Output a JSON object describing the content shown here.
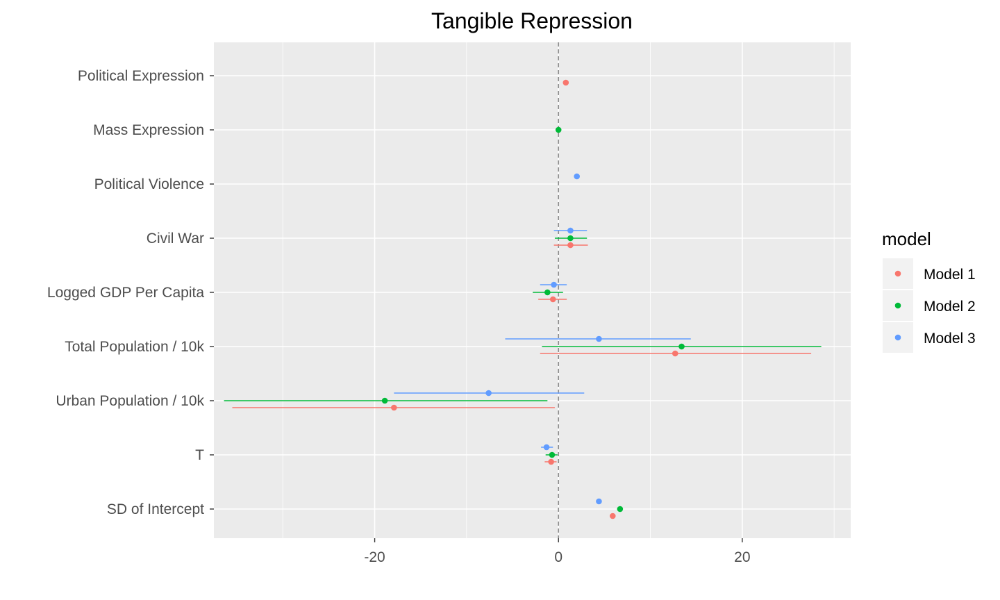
{
  "chart_data": {
    "type": "scatter",
    "title": "Tangible Repression",
    "xlabel": "",
    "ylabel": "",
    "xlim": [
      -37.5,
      31.8
    ],
    "x_ticks": [
      -20,
      0,
      20
    ],
    "x_tick_labels": [
      "-20",
      "0",
      "20"
    ],
    "reference_line": 0,
    "grid": true,
    "legend_title": "model",
    "legend_position": "right",
    "categories": [
      "Political Expression",
      "Mass Expression",
      "Political Violence",
      "Civil War",
      "Logged GDP Per Capita",
      "Total Population / 10k",
      "Urban Population / 10k",
      "T",
      "SD of Intercept"
    ],
    "series": [
      {
        "name": "Model 1",
        "color": "#F8766D",
        "points": [
          {
            "category": "Political Expression",
            "estimate": 0.8,
            "low": 0.8,
            "high": 0.8
          },
          {
            "category": "Civil War",
            "estimate": 1.3,
            "low": -0.5,
            "high": 3.2
          },
          {
            "category": "Logged GDP Per Capita",
            "estimate": -0.6,
            "low": -2.2,
            "high": 0.9
          },
          {
            "category": "Total Population / 10k",
            "estimate": 12.7,
            "low": -2.0,
            "high": 27.5
          },
          {
            "category": "Urban Population / 10k",
            "estimate": -17.9,
            "low": -35.5,
            "high": -0.4
          },
          {
            "category": "T",
            "estimate": -0.8,
            "low": -1.5,
            "high": -0.2
          },
          {
            "category": "SD of Intercept",
            "estimate": 5.9,
            "low": 5.9,
            "high": 5.9
          }
        ]
      },
      {
        "name": "Model 2",
        "color": "#00BA38",
        "points": [
          {
            "category": "Mass Expression",
            "estimate": 0.0,
            "low": 0.0,
            "high": 0.0
          },
          {
            "category": "Civil War",
            "estimate": 1.3,
            "low": -0.4,
            "high": 3.1
          },
          {
            "category": "Logged GDP Per Capita",
            "estimate": -1.2,
            "low": -2.8,
            "high": 0.5
          },
          {
            "category": "Total Population / 10k",
            "estimate": 13.4,
            "low": -1.8,
            "high": 28.6
          },
          {
            "category": "Urban Population / 10k",
            "estimate": -18.9,
            "low": -36.4,
            "high": -1.2
          },
          {
            "category": "T",
            "estimate": -0.7,
            "low": -1.4,
            "high": -0.1
          },
          {
            "category": "SD of Intercept",
            "estimate": 6.7,
            "low": 6.7,
            "high": 6.7
          }
        ]
      },
      {
        "name": "Model 3",
        "color": "#619CFF",
        "points": [
          {
            "category": "Political Violence",
            "estimate": 2.0,
            "low": 1.7,
            "high": 2.3
          },
          {
            "category": "Civil War",
            "estimate": 1.3,
            "low": -0.5,
            "high": 3.1
          },
          {
            "category": "Logged GDP Per Capita",
            "estimate": -0.5,
            "low": -2.0,
            "high": 0.9
          },
          {
            "category": "Total Population / 10k",
            "estimate": 4.4,
            "low": -5.8,
            "high": 14.4
          },
          {
            "category": "Urban Population / 10k",
            "estimate": -7.6,
            "low": -17.9,
            "high": 2.8
          },
          {
            "category": "T",
            "estimate": -1.3,
            "low": -1.9,
            "high": -0.6
          },
          {
            "category": "SD of Intercept",
            "estimate": 4.4,
            "low": 4.4,
            "high": 4.4
          }
        ]
      }
    ]
  }
}
